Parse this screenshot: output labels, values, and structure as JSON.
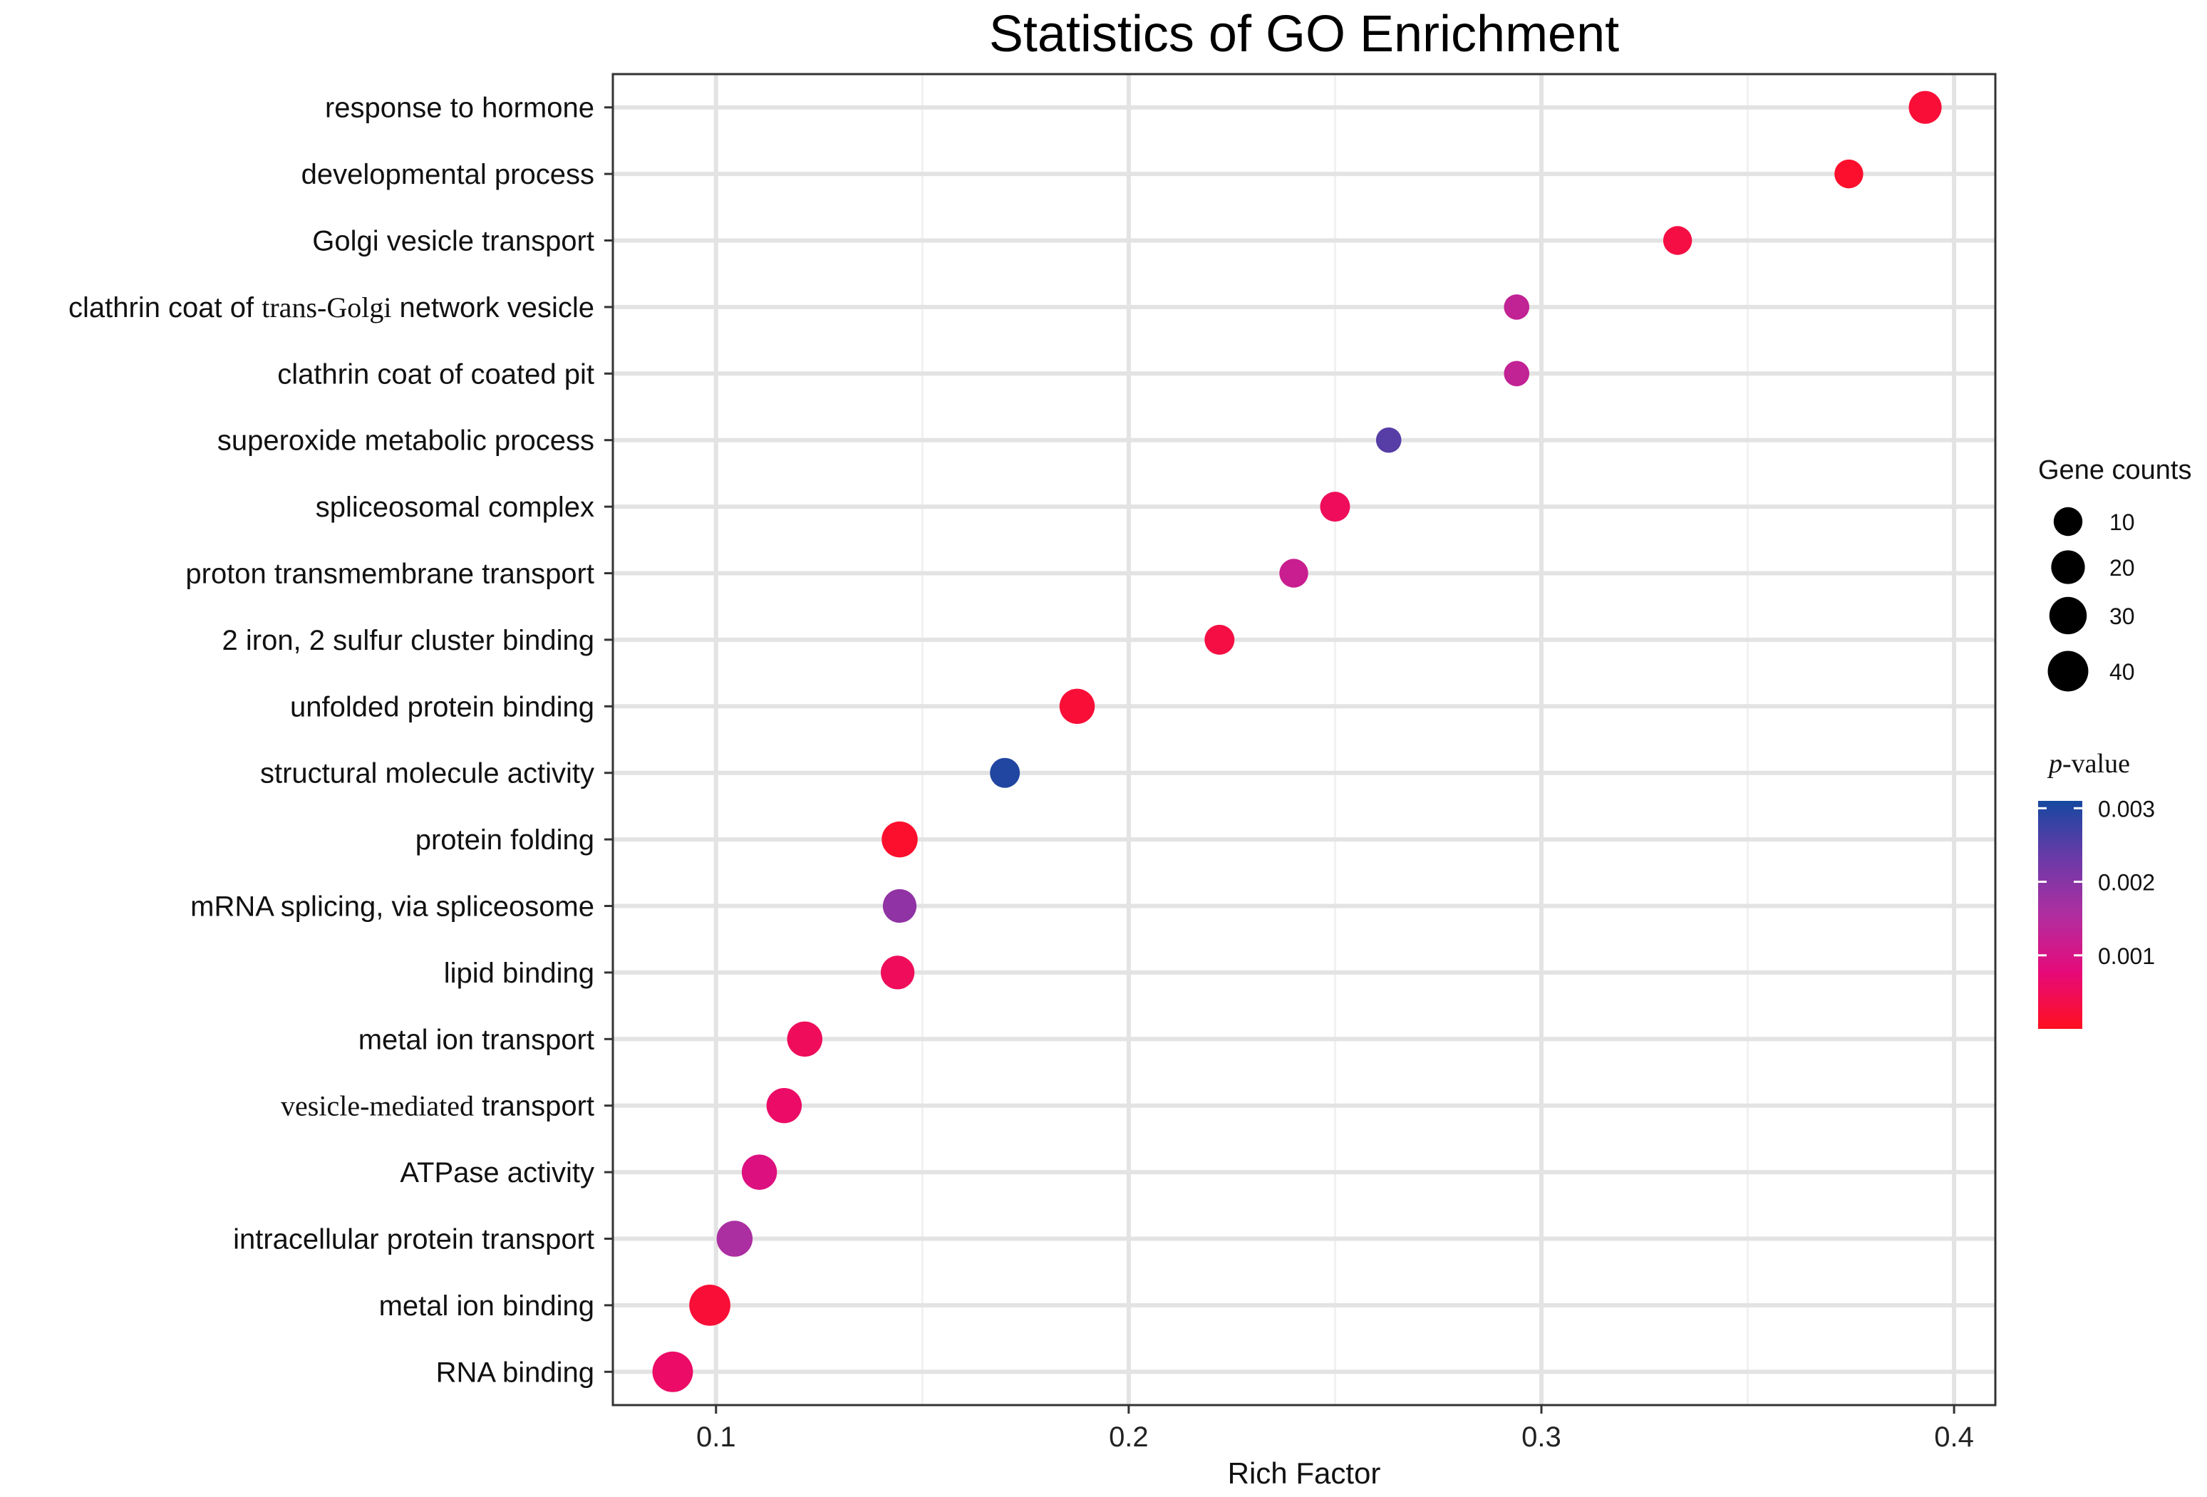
{
  "chart_data": {
    "type": "scatter",
    "title": "Statistics of GO Enrichment",
    "xlabel": "Rich Factor",
    "ylabel": "",
    "xlim": [
      0.075,
      0.41
    ],
    "xticks": [
      "0.1",
      "0.2",
      "0.3",
      "0.4"
    ],
    "xtick_values": [
      0.1,
      0.2,
      0.3,
      0.4
    ],
    "categories": [
      {
        "label": "response to hormone",
        "x": 0.393,
        "count": 18,
        "pvalue": 0.0002
      },
      {
        "label": "developmental process",
        "x": 0.3745,
        "count": 10,
        "pvalue": 0.0001
      },
      {
        "label": "Golgi vesicle transport",
        "x": 0.333,
        "count": 10,
        "pvalue": 0.0003
      },
      {
        "label": "clathrin coat of trans-Golgi network vesicle",
        "label_parts": [
          "clathrin coat of ",
          "trans-Golgi",
          " network vesicle"
        ],
        "x": 0.294,
        "count": 5,
        "pvalue": 0.0013
      },
      {
        "label": "clathrin coat of coated pit",
        "x": 0.294,
        "count": 5,
        "pvalue": 0.0013
      },
      {
        "label": "superoxide metabolic process",
        "x": 0.263,
        "count": 5,
        "pvalue": 0.0025
      },
      {
        "label": "spliceosomal complex",
        "x": 0.25,
        "count": 12,
        "pvalue": 0.0005
      },
      {
        "label": "proton transmembrane transport",
        "x": 0.24,
        "count": 10,
        "pvalue": 0.0012
      },
      {
        "label": "2 iron, 2 sulfur cluster binding",
        "x": 0.222,
        "count": 12,
        "pvalue": 0.0003
      },
      {
        "label": "unfolded protein binding",
        "x": 0.1875,
        "count": 24,
        "pvalue": 0.0002
      },
      {
        "label": "structural molecule activity",
        "x": 0.17,
        "count": 12,
        "pvalue": 0.003
      },
      {
        "label": "protein folding",
        "x": 0.1445,
        "count": 26,
        "pvalue": 0.0001
      },
      {
        "label": "mRNA splicing, via spliceosome",
        "x": 0.1445,
        "count": 20,
        "pvalue": 0.0019
      },
      {
        "label": "lipid binding",
        "x": 0.144,
        "count": 20,
        "pvalue": 0.0005
      },
      {
        "label": "metal ion transport",
        "x": 0.1215,
        "count": 24,
        "pvalue": 0.0005
      },
      {
        "label": "vesicle-mediated transport",
        "label_parts": [
          "",
          "vesicle-mediated",
          " transport"
        ],
        "x": 0.1165,
        "count": 24,
        "pvalue": 0.0006
      },
      {
        "label": "ATPase activity",
        "x": 0.1105,
        "count": 24,
        "pvalue": 0.0009
      },
      {
        "label": "intracellular protein transport",
        "x": 0.1045,
        "count": 26,
        "pvalue": 0.0016
      },
      {
        "label": "metal ion binding",
        "x": 0.0985,
        "count": 42,
        "pvalue": 0.0002
      },
      {
        "label": "RNA binding",
        "x": 0.0895,
        "count": 40,
        "pvalue": 0.0006
      }
    ],
    "legend_size": {
      "title": "Gene counts",
      "entries": [
        {
          "label": "10",
          "value": 10
        },
        {
          "label": "20",
          "value": 20
        },
        {
          "label": "30",
          "value": 30
        },
        {
          "label": "40",
          "value": 40
        }
      ]
    },
    "legend_color": {
      "title_italic": "p",
      "title_rest": "-value",
      "range": [
        0.0,
        0.0031
      ],
      "ticks": [
        {
          "label": "0.003",
          "value": 0.003
        },
        {
          "label": "0.002",
          "value": 0.002
        },
        {
          "label": "0.001",
          "value": 0.001
        }
      ],
      "colors": [
        "#ff1020",
        "#e60a7a",
        "#b02ea0",
        "#6a3aa8",
        "#1648a0"
      ]
    },
    "grid": true,
    "legend_position": "right"
  }
}
